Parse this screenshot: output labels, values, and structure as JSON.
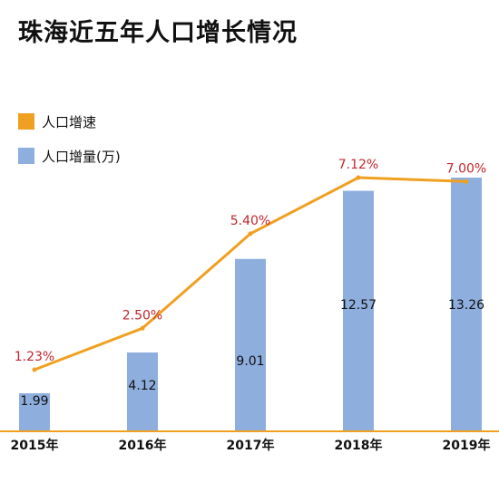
{
  "title": "珠海近五年人口增长情况",
  "colors": {
    "bar": "#8eaede",
    "line": "#f0a020",
    "pct_label": "#c0262d",
    "axis": "#f0a020"
  },
  "chart_data": {
    "type": "bar",
    "title": "珠海近五年人口增长情况",
    "categories": [
      "2015年",
      "2016年",
      "2017年",
      "2018年",
      "2019年"
    ],
    "series": [
      {
        "name": "人口增量(万)",
        "type": "bar",
        "values": [
          1.99,
          4.12,
          9.01,
          12.57,
          13.26
        ],
        "labels": [
          "1.99",
          "4.12",
          "9.01",
          "12.57",
          "13.26"
        ]
      },
      {
        "name": "人口增速",
        "type": "line",
        "values": [
          1.23,
          2.5,
          5.4,
          7.12,
          7.0
        ],
        "labels": [
          "1.23%",
          "2.50%",
          "5.40%",
          "7.12%",
          "7.00%"
        ]
      }
    ],
    "legend": {
      "placement": "top-left",
      "entries": [
        "人口增速",
        "人口增量(万)"
      ]
    },
    "xlabel": "",
    "ylabel": "",
    "grid": false
  }
}
